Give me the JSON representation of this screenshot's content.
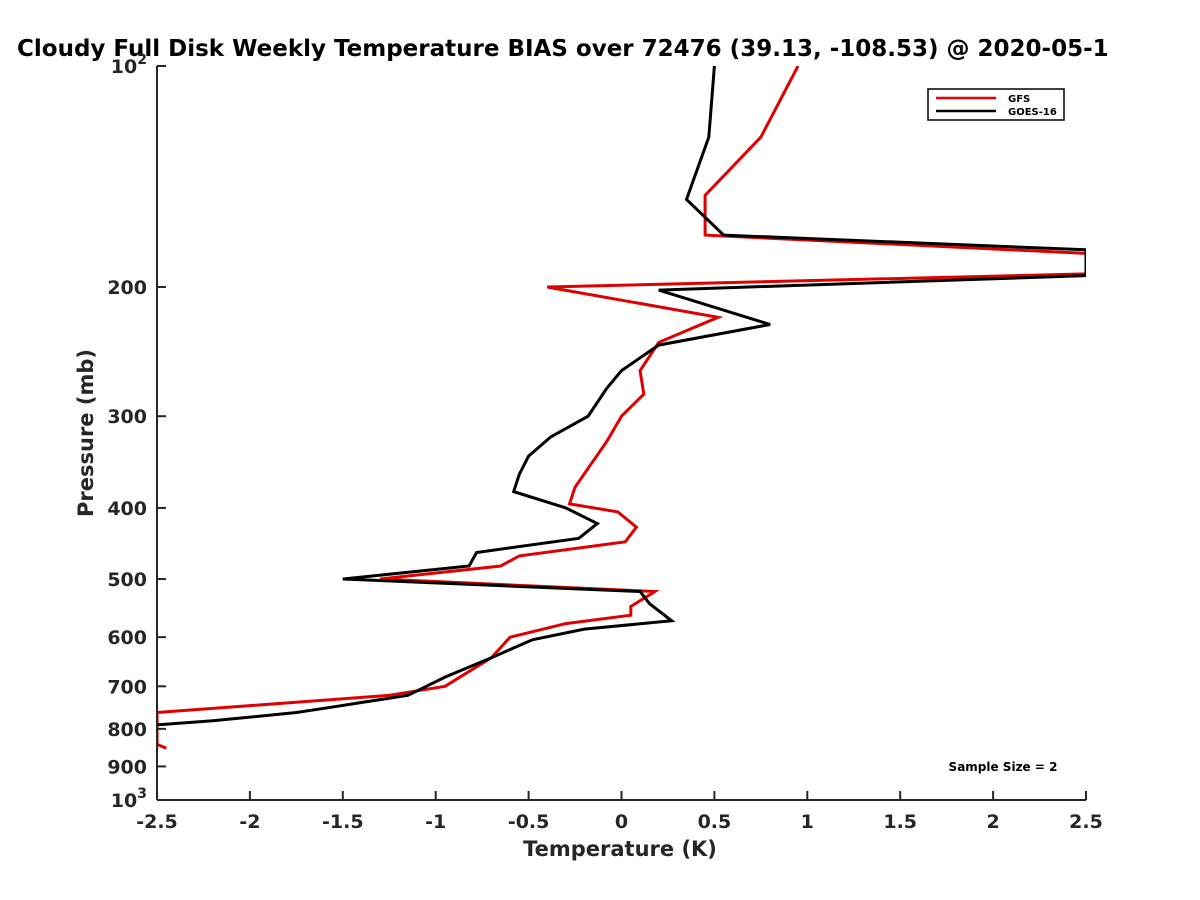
{
  "chart_data": {
    "type": "line",
    "title": "Cloudy Full Disk Weekly Temperature BIAS over 72476 (39.13, -108.53) @ 2020-05-1",
    "xlabel": "Temperature (K)",
    "ylabel": "Pressure (mb)",
    "xlim": [
      -2.5,
      2.5
    ],
    "ylim": [
      100,
      1000
    ],
    "yscale": "log",
    "yreversed": true,
    "xticks": [
      "-2.5",
      "-2",
      "-1.5",
      "-1",
      "-0.5",
      "0",
      "0.5",
      "1",
      "1.5",
      "2",
      "2.5"
    ],
    "xtick_values": [
      -2.5,
      -2,
      -1.5,
      -1,
      -0.5,
      0,
      0.5,
      1,
      1.5,
      2,
      2.5
    ],
    "yticks": [
      {
        "value": 100,
        "base": "10",
        "exp": "2"
      },
      {
        "value": 200,
        "label": "200"
      },
      {
        "value": 300,
        "label": "300"
      },
      {
        "value": 400,
        "label": "400"
      },
      {
        "value": 500,
        "label": "500"
      },
      {
        "value": 600,
        "label": "600"
      },
      {
        "value": 700,
        "label": "700"
      },
      {
        "value": 800,
        "label": "800"
      },
      {
        "value": 900,
        "label": "900"
      },
      {
        "value": 1000,
        "base": "10",
        "exp": "3"
      }
    ],
    "legend_position": "top-right",
    "annotation": "Sample Size = 2",
    "series": [
      {
        "name": "GFS",
        "color": "#e00000",
        "points": [
          [
            0.95,
            100
          ],
          [
            0.75,
            125
          ],
          [
            0.45,
            150
          ],
          [
            0.45,
            170
          ],
          [
            2.5,
            180
          ],
          [
            2.5,
            192
          ],
          [
            -0.4,
            200
          ],
          [
            0.52,
            220
          ],
          [
            0.2,
            238
          ],
          [
            0.1,
            260
          ],
          [
            0.12,
            280
          ],
          [
            0.0,
            300
          ],
          [
            -0.08,
            325
          ],
          [
            -0.25,
            375
          ],
          [
            -0.28,
            395
          ],
          [
            -0.02,
            405
          ],
          [
            0.08,
            425
          ],
          [
            0.02,
            445
          ],
          [
            -0.55,
            465
          ],
          [
            -0.65,
            480
          ],
          [
            -1.3,
            500
          ],
          [
            0.18,
            520
          ],
          [
            0.05,
            545
          ],
          [
            0.05,
            560
          ],
          [
            -0.3,
            575
          ],
          [
            -0.6,
            600
          ],
          [
            -0.7,
            640
          ],
          [
            -0.95,
            700
          ],
          [
            -1.25,
            720
          ],
          [
            -2.5,
            760
          ],
          [
            -2.5,
            840
          ],
          [
            -2.45,
            850
          ]
        ]
      },
      {
        "name": "GOES-16",
        "color": "#000000",
        "points": [
          [
            0.5,
            100
          ],
          [
            0.47,
            125
          ],
          [
            0.35,
            152
          ],
          [
            0.55,
            170
          ],
          [
            2.5,
            178
          ],
          [
            2.5,
            193
          ],
          [
            0.2,
            202
          ],
          [
            0.8,
            225
          ],
          [
            0.2,
            240
          ],
          [
            0.0,
            260
          ],
          [
            -0.08,
            275
          ],
          [
            -0.18,
            300
          ],
          [
            -0.38,
            320
          ],
          [
            -0.5,
            340
          ],
          [
            -0.55,
            360
          ],
          [
            -0.58,
            380
          ],
          [
            -0.3,
            400
          ],
          [
            -0.13,
            420
          ],
          [
            -0.23,
            440
          ],
          [
            -0.78,
            460
          ],
          [
            -0.82,
            480
          ],
          [
            -1.5,
            500
          ],
          [
            0.1,
            520
          ],
          [
            0.15,
            540
          ],
          [
            0.27,
            570
          ],
          [
            -0.2,
            585
          ],
          [
            -0.48,
            605
          ],
          [
            -0.7,
            640
          ],
          [
            -0.95,
            680
          ],
          [
            -1.05,
            700
          ],
          [
            -1.15,
            720
          ],
          [
            -1.6,
            750
          ],
          [
            -1.75,
            760
          ],
          [
            -2.2,
            780
          ],
          [
            -2.5,
            790
          ]
        ]
      }
    ]
  }
}
